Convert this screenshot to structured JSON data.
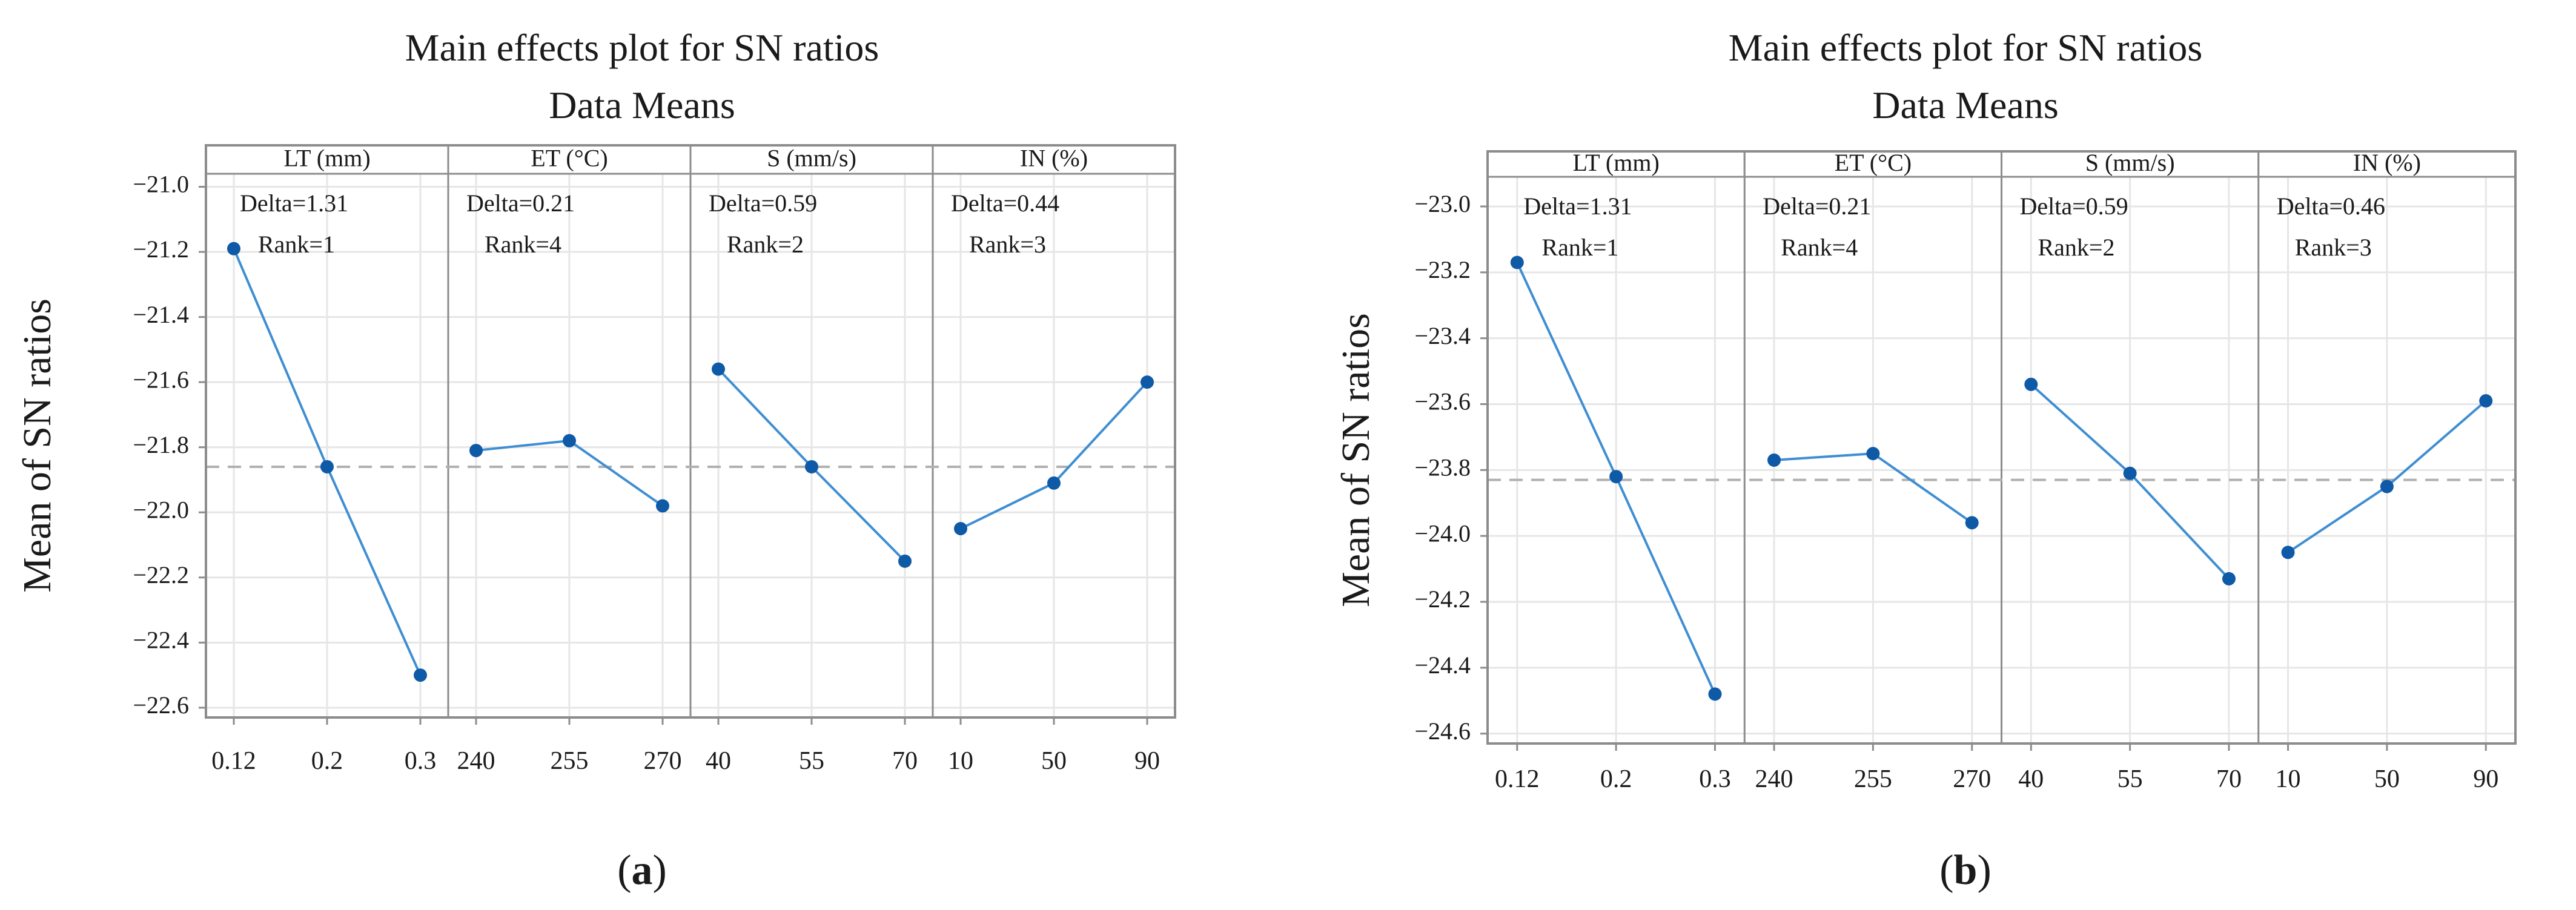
{
  "chart_data": [
    {
      "type": "line",
      "panel_label": "(a)",
      "title": "Main effects plot for SN ratios",
      "subtitle": "Data Means",
      "ylabel": "Mean of SN ratios",
      "ylim": [
        -22.63,
        -20.96
      ],
      "yticks": [
        -21.0,
        -21.2,
        -21.4,
        -21.6,
        -21.8,
        -22.0,
        -22.2,
        -22.4,
        -22.6
      ],
      "ytick_labels": [
        "−21.0",
        "−21.2",
        "−21.4",
        "−21.6",
        "−21.8",
        "−22.0",
        "−22.2",
        "−22.4",
        "−22.6"
      ],
      "reference_mean": -21.86,
      "grid": true,
      "factors": [
        {
          "name": "LT (mm)",
          "levels": [
            "0.12",
            "0.2",
            "0.3"
          ],
          "values": [
            -21.19,
            -21.86,
            -22.5
          ],
          "delta_label": "Delta=1.31",
          "rank_label": "Rank=1"
        },
        {
          "name": "ET (°C)",
          "levels": [
            "240",
            "255",
            "270"
          ],
          "values": [
            -21.81,
            -21.78,
            -21.98
          ],
          "delta_label": "Delta=0.21",
          "rank_label": "Rank=4"
        },
        {
          "name": "S (mm/s)",
          "levels": [
            "40",
            "55",
            "70"
          ],
          "values": [
            -21.56,
            -21.86,
            -22.15
          ],
          "delta_label": "Delta=0.59",
          "rank_label": "Rank=2"
        },
        {
          "name": "IN (%)",
          "levels": [
            "10",
            "50",
            "90"
          ],
          "values": [
            -22.05,
            -21.91,
            -21.6
          ],
          "delta_label": "Delta=0.44",
          "rank_label": "Rank=3"
        }
      ]
    },
    {
      "type": "line",
      "panel_label": "(b)",
      "title": "Main effects plot for SN ratios",
      "subtitle": "Data Means",
      "ylabel": "Mean of SN ratios",
      "ylim": [
        -24.63,
        -22.91
      ],
      "yticks": [
        -23.0,
        -23.2,
        -23.4,
        -23.6,
        -23.8,
        -24.0,
        -24.2,
        -24.4,
        -24.6
      ],
      "ytick_labels": [
        "−23.0",
        "−23.2",
        "−23.4",
        "−23.6",
        "−23.8",
        "−24.0",
        "−24.2",
        "−24.4",
        "−24.6"
      ],
      "reference_mean": -23.83,
      "grid": true,
      "factors": [
        {
          "name": "LT (mm)",
          "levels": [
            "0.12",
            "0.2",
            "0.3"
          ],
          "values": [
            -23.17,
            -23.82,
            -24.48
          ],
          "delta_label": "Delta=1.31",
          "rank_label": "Rank=1"
        },
        {
          "name": "ET (°C)",
          "levels": [
            "240",
            "255",
            "270"
          ],
          "values": [
            -23.77,
            -23.75,
            -23.96
          ],
          "delta_label": "Delta=0.21",
          "rank_label": "Rank=4"
        },
        {
          "name": "S (mm/s)",
          "levels": [
            "40",
            "55",
            "70"
          ],
          "values": [
            -23.54,
            -23.81,
            -24.13
          ],
          "delta_label": "Delta=0.59",
          "rank_label": "Rank=2"
        },
        {
          "name": "IN (%)",
          "levels": [
            "10",
            "50",
            "90"
          ],
          "values": [
            -24.05,
            -23.85,
            -23.59
          ],
          "delta_label": "Delta=0.46",
          "rank_label": "Rank=3"
        }
      ]
    }
  ],
  "colors": {
    "series_line": "#3f8ed2",
    "marker": "#0f5aa6",
    "reference_line": "#b0b0b0",
    "grid": "#e6e6e6",
    "frame": "#8c8c8c"
  }
}
